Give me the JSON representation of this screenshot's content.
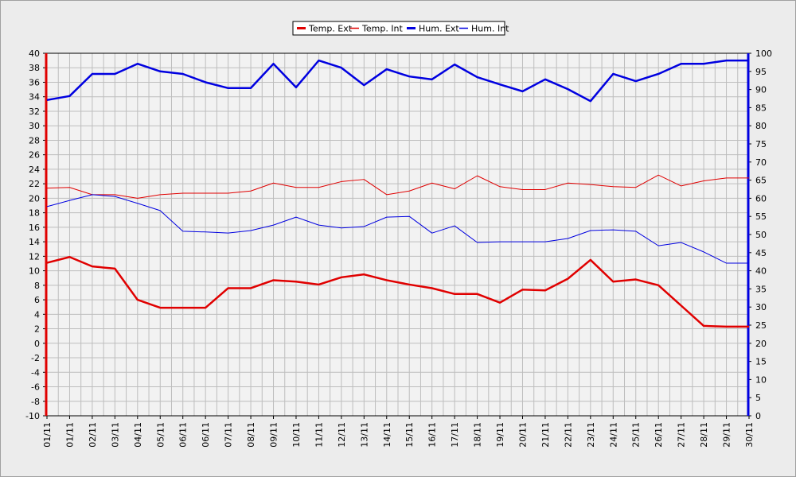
{
  "chart_data": {
    "type": "line",
    "categories": [
      "01/11",
      "01/11",
      "02/11",
      "03/11",
      "04/11",
      "05/11",
      "06/11",
      "06/11",
      "07/11",
      "08/11",
      "09/11",
      "10/11",
      "11/11",
      "12/11",
      "13/11",
      "14/11",
      "15/11",
      "16/11",
      "17/11",
      "18/11",
      "19/11",
      "20/11",
      "21/11",
      "22/11",
      "23/11",
      "24/11",
      "25/11",
      "26/11",
      "27/11",
      "28/11",
      "29/11",
      "30/11"
    ],
    "series": [
      {
        "name": "Temp. Ext",
        "color": "#e00000",
        "width": 2.5,
        "axis": "y",
        "values": [
          11.1,
          11.9,
          10.6,
          10.3,
          6.0,
          4.9,
          4.9,
          4.9,
          7.6,
          7.6,
          8.7,
          8.5,
          8.1,
          9.1,
          9.5,
          8.7,
          8.1,
          7.6,
          6.8,
          6.8,
          5.6,
          7.4,
          7.3,
          8.9,
          11.5,
          8.5,
          8.8,
          8.0,
          5.2,
          2.4,
          2.3,
          2.3
        ]
      },
      {
        "name": "Temp. Int",
        "color": "#e00000",
        "width": 1,
        "axis": "y",
        "values": [
          21.4,
          21.5,
          20.5,
          20.5,
          20.0,
          20.5,
          20.7,
          20.7,
          20.7,
          21.0,
          22.1,
          21.5,
          21.5,
          22.3,
          22.6,
          20.5,
          21.0,
          22.1,
          21.3,
          23.1,
          21.6,
          21.2,
          21.2,
          22.1,
          21.9,
          21.6,
          21.5,
          23.2,
          21.7,
          22.4,
          22.8,
          22.8
        ]
      },
      {
        "name": "Hum. Ext",
        "color": "#0000e0",
        "width": 2.5,
        "axis": "y2",
        "values": [
          87.1,
          88.2,
          94.3,
          94.3,
          97.1,
          95.0,
          94.3,
          92.0,
          90.4,
          90.4,
          97.1,
          90.6,
          98.0,
          96.0,
          91.2,
          95.6,
          93.6,
          92.8,
          96.9,
          93.4,
          91.4,
          89.5,
          92.8,
          90.1,
          86.8,
          94.3,
          92.3,
          94.3,
          97.1,
          97.1,
          98.0,
          98.0
        ]
      },
      {
        "name": "Hum. Int",
        "color": "#0000e0",
        "width": 1,
        "axis": "y2",
        "values": [
          57.7,
          59.4,
          61.0,
          60.5,
          58.6,
          56.6,
          50.9,
          50.7,
          50.4,
          51.1,
          52.6,
          54.8,
          52.6,
          51.8,
          52.2,
          54.8,
          55.0,
          50.4,
          52.4,
          47.8,
          48.0,
          48.0,
          48.0,
          48.9,
          51.1,
          51.3,
          50.9,
          46.9,
          47.8,
          45.2,
          42.1,
          42.1
        ]
      }
    ],
    "ylim": [
      -10,
      40
    ],
    "yticks": [
      -10,
      -8,
      -6,
      -4,
      -2,
      0,
      2,
      4,
      6,
      8,
      10,
      12,
      14,
      16,
      18,
      20,
      22,
      24,
      26,
      28,
      30,
      32,
      34,
      36,
      38,
      40
    ],
    "y2lim": [
      0,
      100
    ],
    "y2ticks": [
      0,
      5,
      10,
      15,
      20,
      25,
      30,
      35,
      40,
      45,
      50,
      55,
      60,
      65,
      70,
      75,
      80,
      85,
      90,
      95,
      100
    ],
    "grid": true
  }
}
